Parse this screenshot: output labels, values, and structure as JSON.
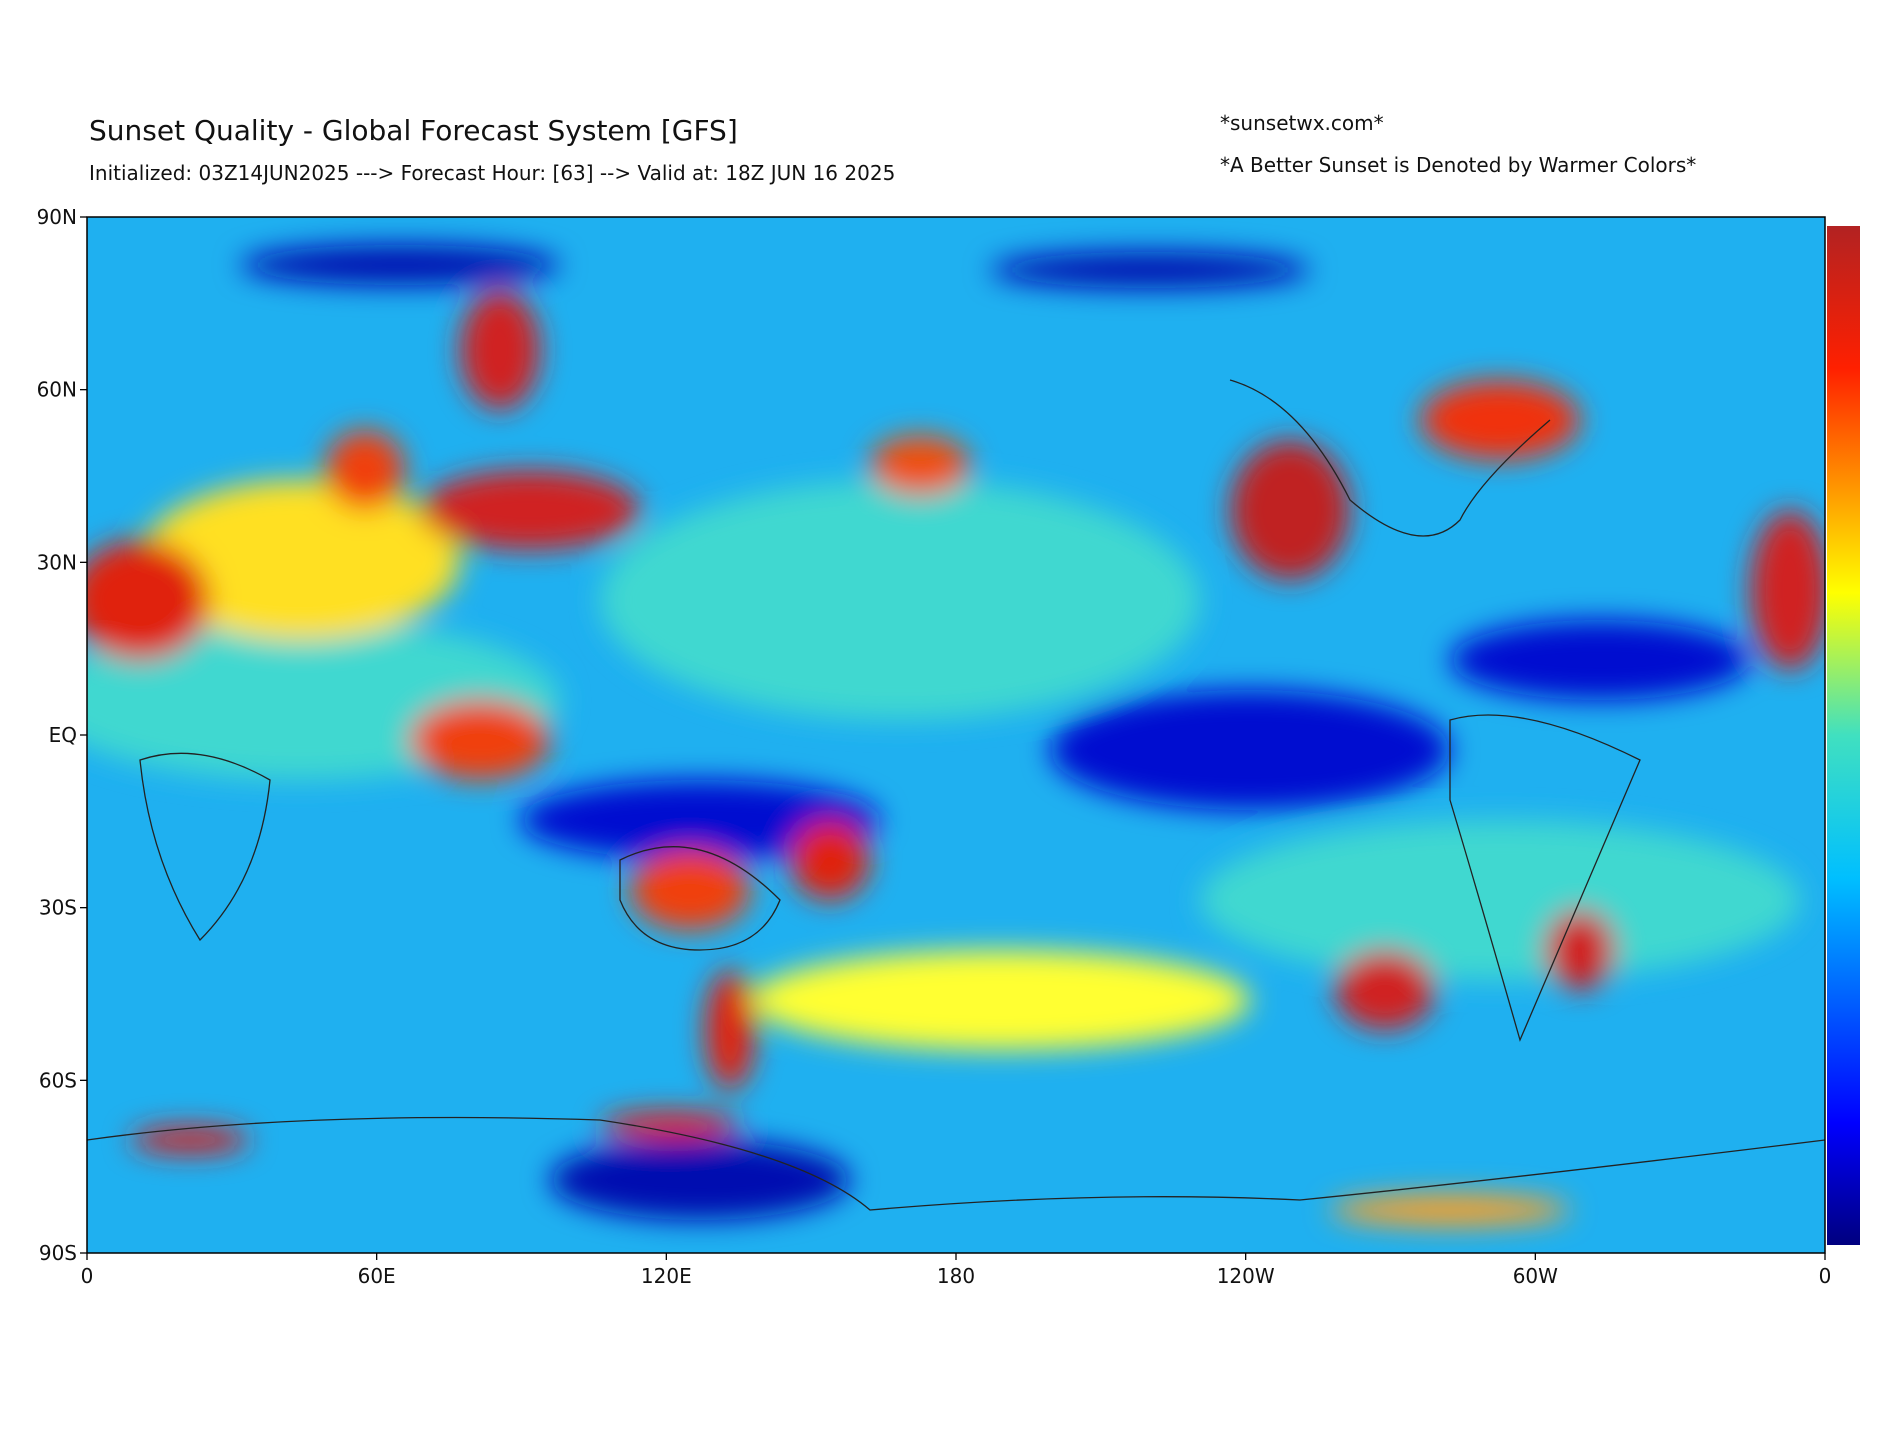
{
  "header": {
    "title": "Sunset Quality - Global Forecast System [GFS]",
    "subtitle": "Initialized: 03Z14JUN2025 ---> Forecast Hour: [63] --> Valid at: 18Z JUN 16 2025",
    "site": "*sunsetwx.com*",
    "note": "*A Better Sunset is Denoted by Warmer Colors*"
  },
  "map": {
    "lat_labels": [
      "90N",
      "60N",
      "30N",
      "EQ",
      "30S",
      "60S",
      "90S"
    ],
    "lon_labels": [
      "0",
      "60E",
      "120E",
      "180",
      "120W",
      "60W",
      "0"
    ]
  }
}
